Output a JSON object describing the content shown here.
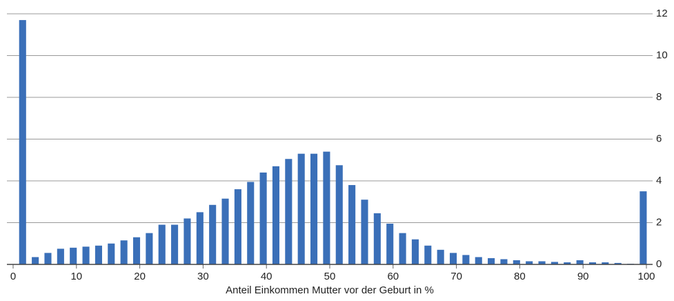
{
  "chart_data": {
    "type": "bar",
    "x_label": "Anteil Einkommen Mutter vor der Geburt in %",
    "x": [
      1.5,
      3.5,
      5.5,
      7.5,
      9.5,
      11.5,
      13.5,
      15.5,
      17.5,
      19.5,
      21.5,
      23.5,
      25.5,
      27.5,
      29.5,
      31.5,
      33.5,
      35.5,
      37.5,
      39.5,
      41.5,
      43.5,
      45.5,
      47.5,
      49.5,
      51.5,
      53.5,
      55.5,
      57.5,
      59.5,
      61.5,
      63.5,
      65.5,
      67.5,
      69.5,
      71.5,
      73.5,
      75.5,
      77.5,
      79.5,
      81.5,
      83.5,
      85.5,
      87.5,
      89.5,
      91.5,
      93.5,
      95.5,
      97.5,
      99.5
    ],
    "values": [
      11.7,
      0.35,
      0.55,
      0.75,
      0.8,
      0.85,
      0.9,
      1.0,
      1.15,
      1.3,
      1.5,
      1.9,
      1.9,
      2.2,
      2.5,
      2.85,
      3.15,
      3.6,
      3.95,
      4.4,
      4.7,
      5.05,
      5.3,
      5.3,
      5.4,
      4.75,
      3.8,
      3.1,
      2.45,
      1.95,
      1.5,
      1.2,
      0.9,
      0.7,
      0.55,
      0.45,
      0.35,
      0.3,
      0.25,
      0.2,
      0.15,
      0.15,
      0.12,
      0.1,
      0.2,
      0.1,
      0.1,
      0.07,
      0.03,
      3.5
    ],
    "color": "#3a6fb8",
    "xlim": [
      0,
      100
    ],
    "xticks": [
      0,
      10,
      20,
      30,
      40,
      50,
      60,
      70,
      80,
      90,
      100
    ],
    "ylim": [
      0,
      12
    ],
    "yticks": [
      0,
      2,
      4,
      6,
      8,
      10,
      12
    ],
    "grid": true
  }
}
